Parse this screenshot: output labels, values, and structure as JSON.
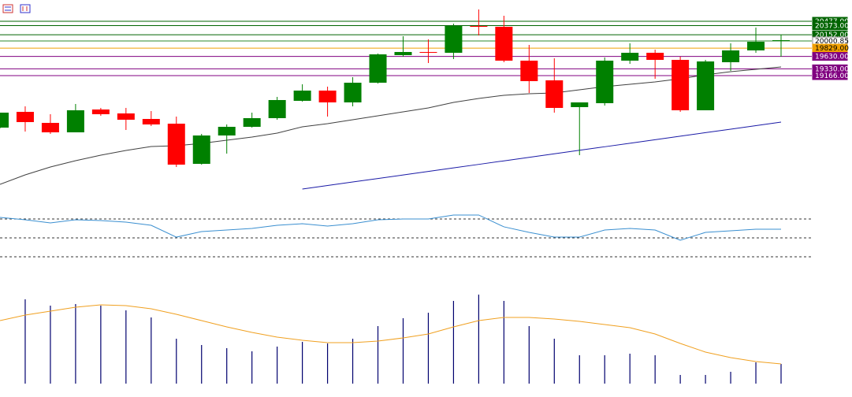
{
  "chart_data": [
    {
      "type": "candlestick",
      "open": [
        17912,
        18292,
        18026,
        17798,
        18349,
        18254,
        18121,
        18007,
        17038,
        17722,
        17931,
        18140,
        18558,
        18805,
        18520,
        18995,
        19660,
        19736,
        19717,
        20363,
        20344,
        19527,
        19052,
        18406,
        18501,
        19527,
        19717,
        19546,
        18330,
        19489,
        19774,
        20002
      ],
      "high": [
        18273,
        18425,
        18235,
        18482,
        18387,
        18387,
        18311,
        18178,
        17760,
        17988,
        18273,
        18653,
        18957,
        18900,
        19128,
        19698,
        20116,
        20040,
        20420,
        20762,
        20610,
        19907,
        19584,
        18520,
        19603,
        19945,
        19793,
        19622,
        19546,
        19945,
        20325,
        20154
      ],
      "low": [
        17893,
        17817,
        17760,
        17798,
        18197,
        17855,
        17950,
        16962,
        17019,
        17285,
        17912,
        18102,
        18539,
        18178,
        18425,
        18976,
        19622,
        19470,
        19565,
        20135,
        19489,
        18748,
        18273,
        17247,
        18444,
        19451,
        19090,
        18292,
        18330,
        19280,
        19717,
        19622
      ],
      "close": [
        18273,
        18045,
        17798,
        18330,
        18235,
        18102,
        17988,
        17019,
        17722,
        17931,
        18140,
        18577,
        18805,
        18520,
        18995,
        19679,
        19736,
        19717,
        20363,
        20344,
        19527,
        19033,
        18387,
        18520,
        19527,
        19717,
        19546,
        18330,
        19508,
        19774,
        19983,
        20021
      ],
      "up_color": "#008000",
      "down_color": "#ff0000",
      "ylim": [
        16335,
        20990
      ],
      "lines": [
        {
          "color": "#404040",
          "values": [
            16544,
            16772,
            16962,
            17114,
            17247,
            17361,
            17456,
            17475,
            17532,
            17608,
            17684,
            17779,
            17931,
            18007,
            18102,
            18197,
            18292,
            18387,
            18520,
            18615,
            18691,
            18729,
            18748,
            18824,
            18900,
            18957,
            19014,
            19090,
            19185,
            19261,
            19318,
            19375
          ]
        },
        {
          "color": "#1a1aa6",
          "values": [
            null,
            null,
            null,
            null,
            null,
            null,
            null,
            null,
            null,
            null,
            null,
            null,
            16430,
            16515,
            16600,
            16685,
            16770,
            16855,
            16940,
            17025,
            17110,
            17195,
            17280,
            17365,
            17450,
            17535,
            17620,
            17705,
            17790,
            17875,
            17960,
            18045
          ]
        }
      ],
      "hlines": [
        {
          "value": 20477,
          "label": "20477.00"
        },
        {
          "value": 20373,
          "label": "20373.00"
        },
        {
          "value": 20152,
          "label": "20152.00"
        },
        {
          "value": 20000.85,
          "label": "20000.85"
        },
        {
          "value": 19829,
          "label": "19829.00"
        },
        {
          "value": 19630,
          "label": "19630.00"
        },
        {
          "value": 19330,
          "label": "19330.00"
        },
        {
          "value": 19166,
          "label": "19166.00"
        }
      ],
      "hline_colors": [
        "#006400",
        "#006400",
        "#006400",
        "#ffffff",
        "#f0a000",
        "#800080",
        "#800080",
        "#800080"
      ]
    },
    {
      "type": "line",
      "values": [
        71.7,
        69.2,
        65.8,
        69.2,
        68.3,
        66.7,
        63.3,
        50.8,
        56.7,
        58.3,
        60,
        63.3,
        65,
        62.5,
        65,
        69.2,
        70,
        70,
        74.2,
        74.2,
        61.7,
        55.8,
        50.8,
        50.8,
        58.3,
        60,
        58.3,
        47.5,
        55.8,
        57.5,
        59.2,
        59.2
      ],
      "color": "#3a8fd0",
      "ylim": [
        10,
        90
      ],
      "levels": [
        70,
        50,
        30
      ]
    },
    {
      "type": "bar",
      "values": [
        null,
        107,
        99,
        101,
        99,
        93,
        84,
        57,
        49,
        45,
        41,
        47,
        53,
        51,
        57,
        73,
        83,
        90,
        105,
        113,
        105,
        73,
        57,
        36,
        36,
        38,
        36,
        11,
        11,
        15,
        27,
        25
      ],
      "color": "#00006e",
      "ylim": [
        0,
        120
      ],
      "line": {
        "color": "#f0a020",
        "values": [
          80,
          87,
          92,
          97,
          100,
          99,
          95,
          88,
          80,
          72,
          65,
          59,
          55,
          52,
          52,
          54,
          58,
          63,
          72,
          80,
          84,
          84,
          82,
          79,
          75,
          71,
          63,
          51,
          40,
          33,
          28,
          25
        ]
      }
    }
  ]
}
